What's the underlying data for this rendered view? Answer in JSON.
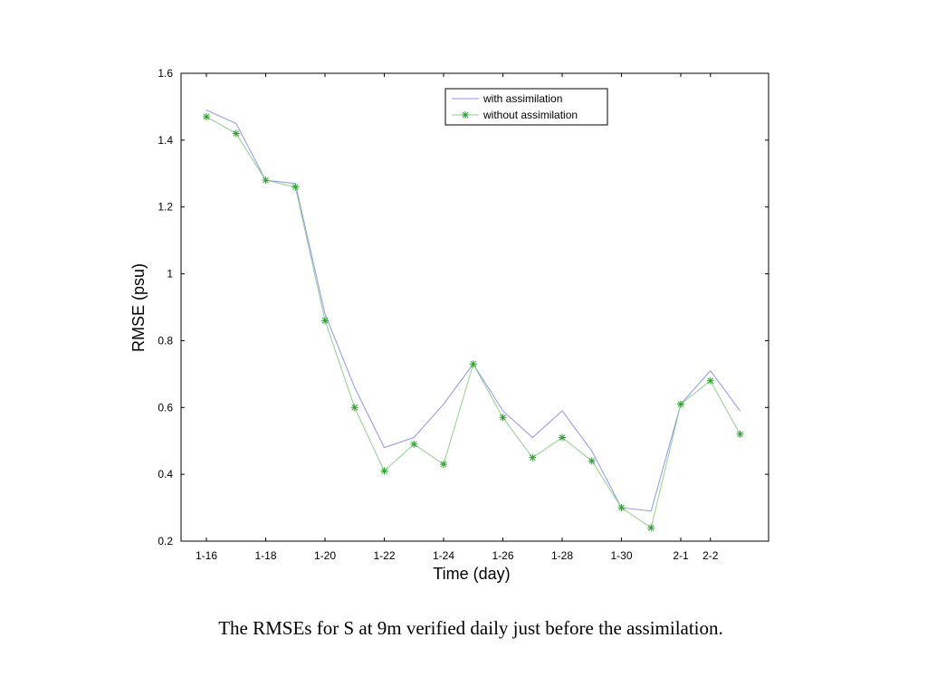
{
  "caption": "The RMSEs for S at 9m verified daily just before the assimilation.",
  "chart_data": {
    "type": "line",
    "xlabel": "Time (day)",
    "ylabel": "RMSE (psu)",
    "x": [
      "1-16",
      "1-17",
      "1-18",
      "1-19",
      "1-20",
      "1-21",
      "1-22",
      "1-23",
      "1-24",
      "1-25",
      "1-26",
      "1-27",
      "1-28",
      "1-29",
      "1-30",
      "1-31",
      "2-1",
      "2-2",
      "2-3"
    ],
    "xticks": [
      "1-16",
      "1-18",
      "1-20",
      "1-22",
      "1-24",
      "1-26",
      "1-28",
      "1-30",
      "2-1",
      "2-2"
    ],
    "ylim": [
      0.2,
      1.6
    ],
    "yticks": [
      "0.2",
      "0.4",
      "0.6",
      "0.8",
      "1",
      "1.2",
      "1.4",
      "1.6"
    ],
    "grid": false,
    "legend_position": "top-center",
    "series": [
      {
        "name": "with assimilation",
        "color": "#8f96e8",
        "marker": "none",
        "values": [
          1.49,
          1.45,
          1.28,
          1.27,
          0.88,
          0.66,
          0.48,
          0.51,
          0.61,
          0.73,
          0.59,
          0.51,
          0.59,
          0.47,
          0.3,
          0.29,
          0.61,
          0.71,
          0.59
        ]
      },
      {
        "name": "without assimilation",
        "color": "#2ca02c",
        "line_color": "#8fd08f",
        "marker": "asterisk",
        "values": [
          1.47,
          1.42,
          1.28,
          1.26,
          0.86,
          0.6,
          0.41,
          0.49,
          0.43,
          0.73,
          0.57,
          0.45,
          0.51,
          0.44,
          0.3,
          0.24,
          0.61,
          0.68,
          0.52
        ]
      }
    ]
  }
}
